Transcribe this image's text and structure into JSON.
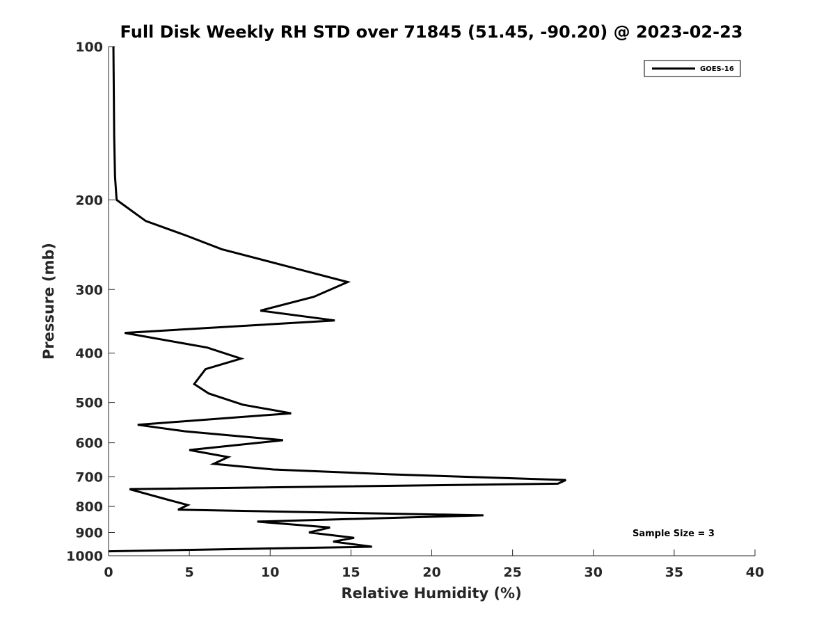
{
  "chart_data": {
    "type": "line",
    "title": "Full Disk Weekly RH STD over 71845 (51.45, -90.20) @ 2023-02-23",
    "xlabel": "Relative Humidity (%)",
    "ylabel": "Pressure (mb)",
    "xlim": [
      0,
      40
    ],
    "ylim": [
      100,
      1000
    ],
    "y_scale": "log",
    "y_reversed": true,
    "x_ticks": [
      0,
      5,
      10,
      15,
      20,
      25,
      30,
      35,
      40
    ],
    "y_ticks": [
      100,
      200,
      300,
      400,
      500,
      600,
      700,
      800,
      900,
      1000
    ],
    "grid": false,
    "legend_position": "top-right",
    "annotation": "Sample Size = 3",
    "series": [
      {
        "name": "GOES-16",
        "color": "#000000",
        "points": [
          [
            0.3,
            100
          ],
          [
            0.35,
            150
          ],
          [
            0.4,
            180
          ],
          [
            0.5,
            200
          ],
          [
            2.3,
            220
          ],
          [
            4.8,
            235
          ],
          [
            7.0,
            250
          ],
          [
            12.0,
            275
          ],
          [
            14.8,
            290
          ],
          [
            12.7,
            310
          ],
          [
            9.4,
            330
          ],
          [
            14.0,
            345
          ],
          [
            1.0,
            365
          ],
          [
            6.1,
            390
          ],
          [
            8.2,
            410
          ],
          [
            6.0,
            430
          ],
          [
            5.3,
            460
          ],
          [
            6.2,
            480
          ],
          [
            8.3,
            505
          ],
          [
            11.3,
            525
          ],
          [
            1.8,
            553
          ],
          [
            4.8,
            570
          ],
          [
            10.8,
            593
          ],
          [
            5.0,
            620
          ],
          [
            7.4,
            640
          ],
          [
            6.5,
            660
          ],
          [
            10.2,
            677
          ],
          [
            17.5,
            692
          ],
          [
            28.3,
            710
          ],
          [
            27.8,
            722
          ],
          [
            1.3,
            740
          ],
          [
            3.6,
            775
          ],
          [
            4.9,
            795
          ],
          [
            4.3,
            812
          ],
          [
            23.2,
            833
          ],
          [
            9.2,
            857
          ],
          [
            13.7,
            880
          ],
          [
            12.4,
            900
          ],
          [
            15.2,
            922
          ],
          [
            13.9,
            938
          ],
          [
            16.3,
            960
          ],
          [
            0,
            980
          ]
        ]
      }
    ]
  }
}
